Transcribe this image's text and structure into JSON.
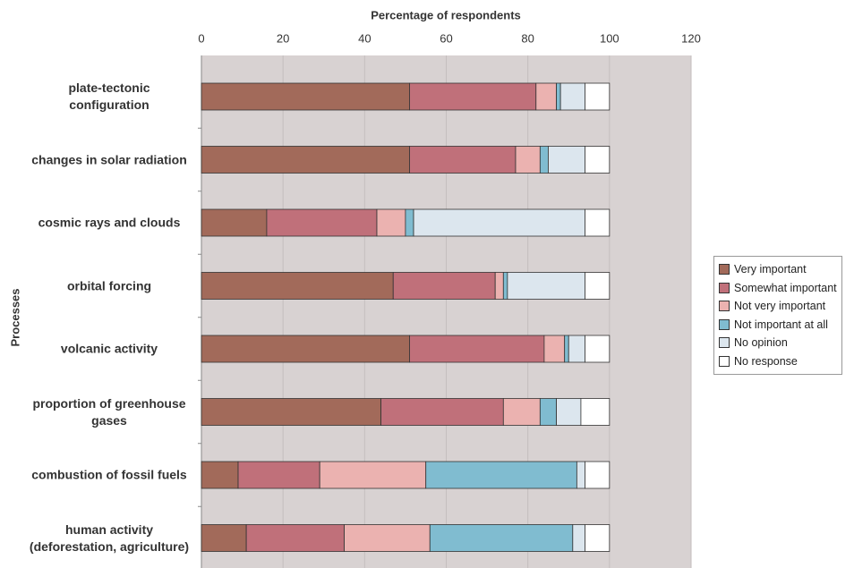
{
  "chart_data": {
    "type": "stacked-barh",
    "x_label": "Percentage of respondents",
    "y_label": "Processes",
    "categories": [
      "plate-tectonic configuration",
      "changes in solar radiation",
      "cosmic rays and clouds",
      "orbital forcing",
      "volcanic activity",
      "proportion of greenhouse gases",
      "combustion of fossil fuels",
      "human activity (deforestation, agriculture)"
    ],
    "series": [
      {
        "name": "Very important",
        "color": "#a26a5a",
        "values": [
          51,
          51,
          16,
          47,
          51,
          44,
          9,
          11
        ]
      },
      {
        "name": "Somewhat important",
        "color": "#c0707a",
        "values": [
          31,
          26,
          27,
          25,
          33,
          30,
          20,
          24
        ]
      },
      {
        "name": "Not very important",
        "color": "#ebb2b0",
        "values": [
          5,
          6,
          7,
          2,
          5,
          9,
          26,
          21
        ]
      },
      {
        "name": "Not important at all",
        "color": "#80bcd0",
        "values": [
          1,
          2,
          2,
          1,
          1,
          4,
          37,
          35
        ]
      },
      {
        "name": "No opinion",
        "color": "#dce6ee",
        "values": [
          6,
          9,
          42,
          19,
          4,
          6,
          2,
          3
        ]
      },
      {
        "name": "No response",
        "color": "#ffffff",
        "values": [
          6,
          6,
          6,
          6,
          6,
          7,
          6,
          6
        ]
      }
    ],
    "xlim": [
      0,
      120
    ],
    "xticks": [
      0,
      20,
      40,
      60,
      80,
      100,
      120
    ],
    "grid": true,
    "legend": "right"
  }
}
